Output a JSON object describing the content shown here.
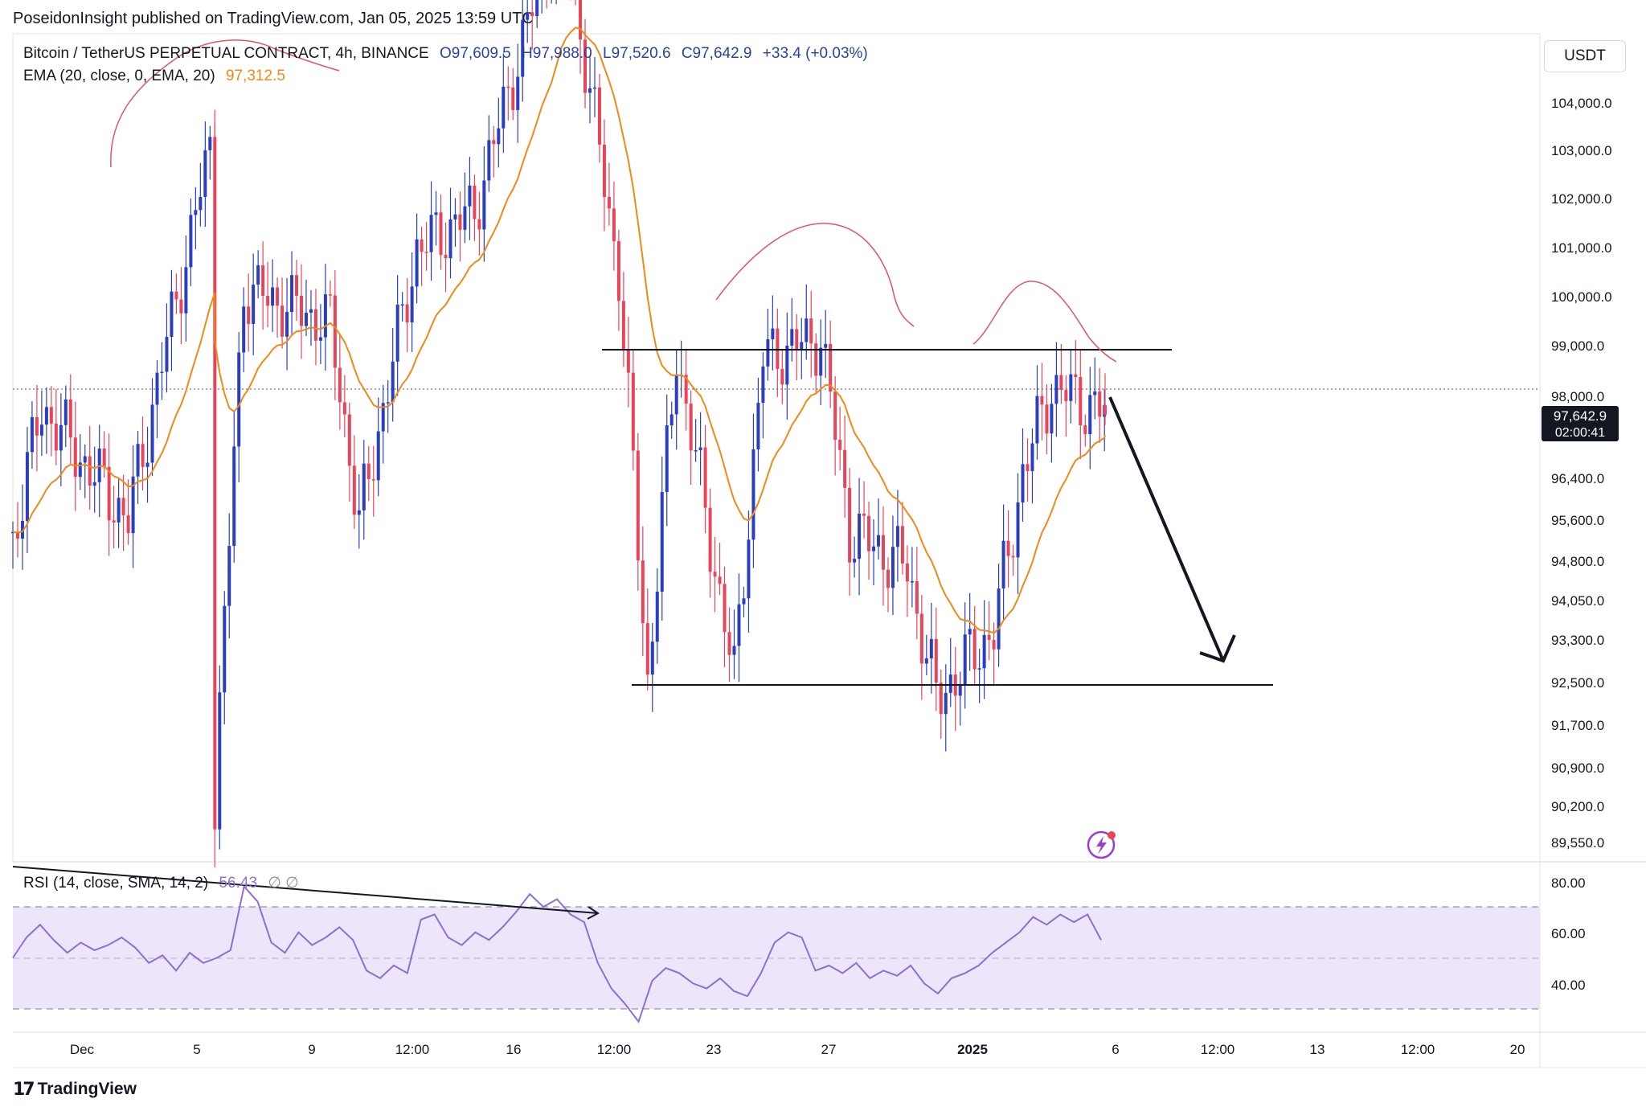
{
  "header": {
    "publish_text": "PoseidonInsight published on TradingView.com, Jan 05, 2025 13:59 UTC"
  },
  "legend": {
    "symbol": "Bitcoin / TetherUS PERPETUAL CONTRACT, 4h, BINANCE",
    "open": "O97,609.5",
    "high": "H97,988.0",
    "low": "L97,520.6",
    "close": "C97,642.9",
    "change": "+33.4 (+0.03%)",
    "ema_label": "EMA (20, close, 0, EMA, 20)",
    "ema_value": "97,312.5",
    "rsi_label": "RSI (14, close, SMA, 14, 2)",
    "rsi_value": "56.43",
    "rsi_na": "∅ ∅"
  },
  "currency": "USDT",
  "price_axis": [
    "104,000.0",
    "103,000.0",
    "102,000.0",
    "101,000.0",
    "100,000.0",
    "99,000.0",
    "98,000.0",
    "96,400.0",
    "95,600.0",
    "94,800.0",
    "94,050.0",
    "93,300.0",
    "92,500.0",
    "91,700.0",
    "90,900.0",
    "90,200.0",
    "89,550.0"
  ],
  "price_label": {
    "price": "97,642.9",
    "countdown": "02:00:41"
  },
  "rsi_axis": [
    "80.00",
    "60.00",
    "40.00"
  ],
  "time_axis": [
    "Dec",
    "5",
    "9",
    "12:00",
    "16",
    "12:00",
    "23",
    "27",
    "2025",
    "6",
    "12:00",
    "13",
    "12:00",
    "20"
  ],
  "brand": "TradingView",
  "colors": {
    "up": "#2a3fbf",
    "down": "#e8455a",
    "ema": "#ef8a17",
    "rsi": "#8e6fd1",
    "rsi_band": "#ede6fb",
    "annotation": "#e05563"
  },
  "chart_data": [
    {
      "type": "candlestick",
      "title": "Bitcoin / TetherUS PERPETUAL CONTRACT, 4h, BINANCE",
      "x_range": [
        "2024-11-28",
        "2025-01-05"
      ],
      "ylim": [
        89550,
        104500
      ],
      "overlay": "EMA 20",
      "key_points": [
        {
          "date": "2024-11-28",
          "price": 95200
        },
        {
          "date": "2024-11-29",
          "price": 97800
        },
        {
          "date": "2024-12-02",
          "price": 95600
        },
        {
          "date": "2024-12-05",
          "price": 103500
        },
        {
          "date": "2024-12-05",
          "price": 90300
        },
        {
          "date": "2024-12-06",
          "price": 100200
        },
        {
          "date": "2024-12-09",
          "price": 99500
        },
        {
          "date": "2024-12-10",
          "price": 95500
        },
        {
          "date": "2024-12-12",
          "price": 101000
        },
        {
          "date": "2024-12-14",
          "price": 101800
        },
        {
          "date": "2024-12-17",
          "price": 108000
        },
        {
          "date": "2024-12-19",
          "price": 100500
        },
        {
          "date": "2024-12-20",
          "price": 92500
        },
        {
          "date": "2024-12-21",
          "price": 98900
        },
        {
          "date": "2024-12-23",
          "price": 92600
        },
        {
          "date": "2024-12-24",
          "price": 98800
        },
        {
          "date": "2024-12-26",
          "price": 99200
        },
        {
          "date": "2024-12-27",
          "price": 95400
        },
        {
          "date": "2024-12-29",
          "price": 94700
        },
        {
          "date": "2024-12-30",
          "price": 92200
        },
        {
          "date": "2025-01-01",
          "price": 93500
        },
        {
          "date": "2025-01-02",
          "price": 96500
        },
        {
          "date": "2025-01-03",
          "price": 98200
        },
        {
          "date": "2025-01-05",
          "price": 97642.9
        }
      ],
      "horizontal_lines": [
        98900,
        92500
      ],
      "annotation": "arrow down toward 92,500"
    },
    {
      "type": "line",
      "title": "RSI (14, close, SMA, 14, 2)",
      "ylim": [
        20,
        85
      ],
      "bands": [
        70,
        50,
        30
      ],
      "x_range": [
        "2024-11-28",
        "2025-01-05"
      ],
      "values": [
        50,
        58,
        63,
        57,
        52,
        56,
        53,
        55,
        58,
        54,
        48,
        51,
        45,
        52,
        48,
        50,
        53,
        78,
        72,
        56,
        52,
        60,
        55,
        58,
        62,
        57,
        45,
        42,
        47,
        44,
        65,
        67,
        58,
        55,
        60,
        57,
        62,
        68,
        75,
        70,
        73,
        67,
        64,
        48,
        38,
        32,
        25,
        41,
        46,
        44,
        40,
        38,
        42,
        37,
        35,
        44,
        56,
        60,
        58,
        45,
        47,
        44,
        48,
        42,
        45,
        43,
        47,
        40,
        36,
        42,
        44,
        47,
        52,
        56,
        60,
        66,
        63,
        67,
        64,
        67,
        57
      ]
    }
  ]
}
